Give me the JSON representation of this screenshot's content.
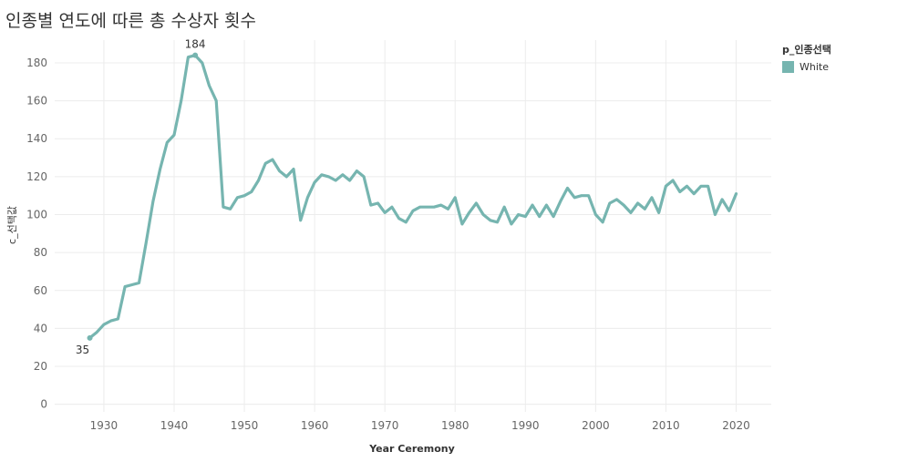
{
  "title": "인종별 연도에 따른 총 수상자 횟수",
  "legend": {
    "title": "p_인종선택",
    "items": [
      {
        "label": "White",
        "color": "#76b5b0"
      }
    ]
  },
  "chart_data": {
    "type": "line",
    "xlabel": "Year Ceremony",
    "ylabel": "c_선택값",
    "xlim": [
      1923,
      2025
    ],
    "ylim": [
      -4,
      192
    ],
    "xticks": [
      1930,
      1940,
      1950,
      1960,
      1970,
      1980,
      1990,
      2000,
      2010,
      2020
    ],
    "yticks": [
      0,
      20,
      40,
      60,
      80,
      100,
      120,
      140,
      160,
      180
    ],
    "grid": true,
    "legend_position": "top-right",
    "series": [
      {
        "name": "White",
        "color": "#76b5b0",
        "x": [
          1928,
          1929,
          1930,
          1931,
          1932,
          1933,
          1934,
          1935,
          1936,
          1937,
          1938,
          1939,
          1940,
          1941,
          1942,
          1943,
          1944,
          1945,
          1946,
          1947,
          1948,
          1949,
          1950,
          1951,
          1952,
          1953,
          1954,
          1955,
          1956,
          1957,
          1958,
          1959,
          1960,
          1961,
          1962,
          1963,
          1964,
          1965,
          1966,
          1967,
          1968,
          1969,
          1970,
          1971,
          1972,
          1973,
          1974,
          1975,
          1976,
          1977,
          1978,
          1979,
          1980,
          1981,
          1982,
          1983,
          1984,
          1985,
          1986,
          1987,
          1988,
          1989,
          1990,
          1991,
          1992,
          1993,
          1994,
          1995,
          1996,
          1997,
          1998,
          1999,
          2000,
          2001,
          2002,
          2003,
          2004,
          2005,
          2006,
          2007,
          2008,
          2009,
          2010,
          2011,
          2012,
          2013,
          2014,
          2015,
          2016,
          2017,
          2018,
          2019,
          2020
        ],
        "y": [
          35,
          38,
          42,
          44,
          45,
          62,
          63,
          64,
          85,
          107,
          124,
          138,
          142,
          160,
          183,
          184,
          180,
          168,
          160,
          104,
          103,
          109,
          110,
          112,
          118,
          127,
          129,
          123,
          120,
          124,
          97,
          109,
          117,
          121,
          120,
          118,
          121,
          118,
          123,
          120,
          105,
          106,
          101,
          104,
          98,
          96,
          102,
          104,
          104,
          104,
          105,
          103,
          109,
          95,
          101,
          106,
          100,
          97,
          96,
          104,
          95,
          100,
          99,
          105,
          99,
          105,
          99,
          107,
          114,
          109,
          110,
          110,
          100,
          96,
          106,
          108,
          105,
          101,
          106,
          103,
          109,
          101,
          115,
          118,
          112,
          115,
          111,
          115,
          115,
          100,
          108,
          102,
          111
        ]
      }
    ],
    "annotations": [
      {
        "x": 1928,
        "y": 35,
        "text": "35"
      },
      {
        "x": 1943,
        "y": 184,
        "text": "184"
      }
    ]
  }
}
